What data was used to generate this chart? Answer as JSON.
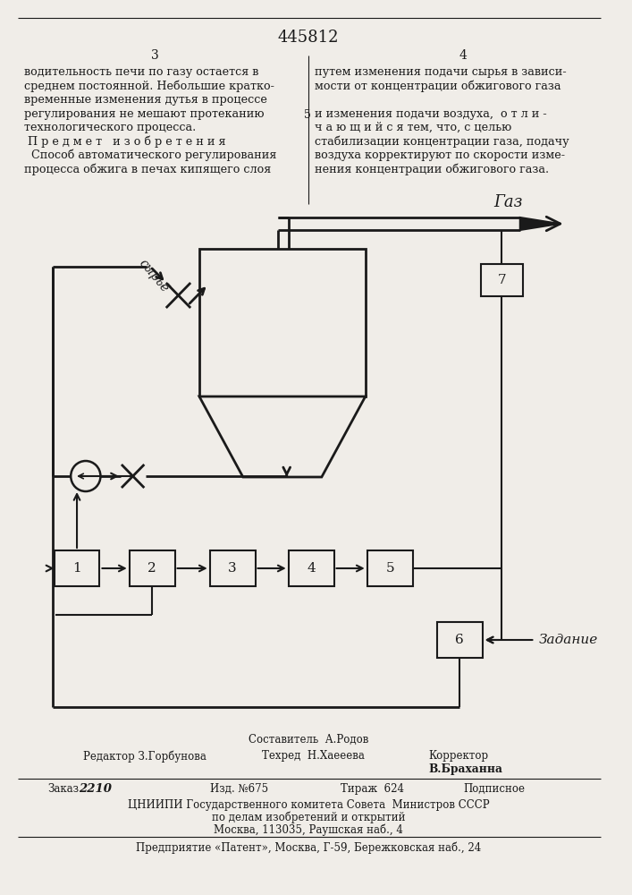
{
  "patent_number": "445812",
  "page_left": "3",
  "page_right": "4",
  "text_left": [
    "водительность печи по газу остается в",
    "среднем постоянной. Небольшие кратко-",
    "временные изменения дутья в процессе",
    "регулирования не мешают протеканию",
    "технологического процесса.",
    " П р е д м е т   и з о б р е т е н и я",
    "  Способ автоматического регулирования",
    "процесса обжига в печах кипящего слоя"
  ],
  "text_right": [
    "путем изменения подачи сырья в зависи-",
    "мости от концентрации обжигового газа",
    "",
    "и изменения подачи воздуха,  о т л и -",
    "ч а ю щ и й с я тем, что, с целью",
    "стабилизации концентрации газа, подачу",
    "воздуха корректируют по скорости изме-",
    "нения концентрации обжигового газа."
  ],
  "gas_label": "Газ",
  "zadanie_label": "Задание",
  "syrye_label": "сырьё",
  "box_labels": [
    "1",
    "2",
    "3",
    "4",
    "5",
    "6",
    "7"
  ],
  "bg_color": "#f0ede8",
  "line_color": "#1a1a1a",
  "text_color": "#1a1a1a"
}
